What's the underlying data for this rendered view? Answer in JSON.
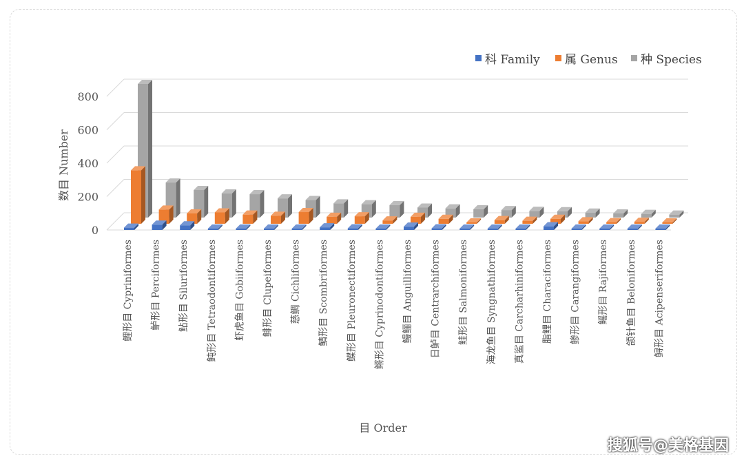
{
  "chart_data": {
    "type": "bar",
    "style": "3d-clustered-column",
    "xlabel": "目 Order",
    "ylabel": "数目 Number",
    "ylim": [
      0,
      800
    ],
    "yticks": [
      0,
      200,
      400,
      600,
      800
    ],
    "grid": true,
    "legend_position": "top-right",
    "categories": [
      "鲤形目 Cypriniformes",
      "鲈形目 Perciformes",
      "鲇形目 Siluriformes",
      "鲀形目 Tetraodontiformes",
      "虾虎鱼目 Gobiiformes",
      "鲱形目 Clupeiformes",
      "慈鲷 Cichliformes",
      "鲭形目 Scombriformes",
      "鲽形目 Pleuronectiformes",
      "鳉形目 Cyprinodontiformes",
      "鳗鲡目 Anguilliformes",
      "日鲈目 Centrarchiformes",
      "鲑形目 Salmoniformes",
      "海龙鱼目 Syngnathiformes",
      "真鲨目 Carcharhiniformes",
      "脂鲤目 Characiformes",
      "鲹形目 Carangiformes",
      "鳐形目 Rajiformes",
      "颌针鱼目 Beloniformes",
      "鲟形目 Acipenseriformes"
    ],
    "series": [
      {
        "name": "科 Family",
        "color": "#4472c4",
        "values": [
          14,
          32,
          28,
          8,
          5,
          4,
          2,
          16,
          10,
          6,
          20,
          10,
          2,
          8,
          6,
          22,
          5,
          3,
          5,
          2
        ]
      },
      {
        "name": "属 Genus",
        "color": "#ed7d31",
        "values": [
          320,
          85,
          62,
          68,
          55,
          48,
          70,
          42,
          45,
          20,
          42,
          30,
          8,
          22,
          18,
          30,
          15,
          10,
          12,
          8
        ]
      },
      {
        "name": "种 Species",
        "color": "#a5a5a5",
        "values": [
          800,
          210,
          165,
          145,
          140,
          115,
          105,
          85,
          80,
          75,
          60,
          55,
          50,
          45,
          40,
          38,
          30,
          25,
          22,
          18
        ]
      }
    ]
  },
  "watermark": "搜狐号@美格基因"
}
